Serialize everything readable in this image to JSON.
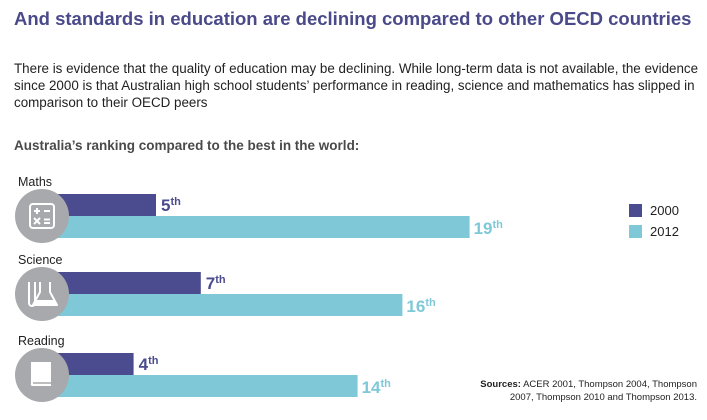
{
  "title": "And standards in education are declining compared to other OECD countries",
  "intro": "There is evidence that the quality of education may be declining. While long-term data is not available, the evidence since 2000 is that Australian high school students’ performance in reading, science and mathematics has slipped in comparison to their OECD peers",
  "subtitle": "Australia’s ranking compared to the best in the world:",
  "sources_label": "Sources:",
  "sources_text": "ACER 2001, Thompson 2004, Thompson 2007, Thompson 2010 and Thompson 2013.",
  "chart_data": {
    "type": "bar",
    "orientation": "horizontal",
    "title": "Australia’s ranking compared to the best in the world:",
    "categories": [
      "Maths",
      "Science",
      "Reading"
    ],
    "icons": [
      "calculator-icon",
      "flask-icon",
      "book-icon"
    ],
    "series": [
      {
        "name": "2000",
        "values": [
          5,
          7,
          4
        ],
        "labels": [
          "5th",
          "7th",
          "4th"
        ],
        "color": "#4b4b8f"
      },
      {
        "name": "2012",
        "values": [
          19,
          16,
          14
        ],
        "labels": [
          "19th",
          "16th",
          "14th"
        ],
        "color": "#7ec8d8"
      }
    ],
    "xlabel": "",
    "ylabel": "",
    "legend": "right",
    "grid": false
  },
  "colors": {
    "title": "#4a4a8a",
    "icon_circle": "#a7a9ac",
    "dark": "#4b4b8f",
    "light": "#7ec8d8"
  }
}
